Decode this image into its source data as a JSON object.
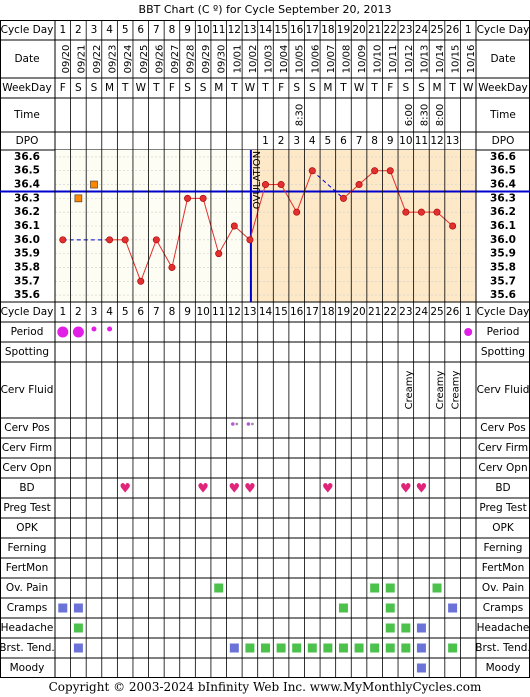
{
  "header": {
    "title": "BBT Chart (C º) for Cycle September 20, 2013"
  },
  "footer": {
    "copyright": "Copyright © 2003-2024 bInfinity Web Inc.    www.MyMonthlyCycles.com"
  },
  "labels": {
    "cycle_day": "Cycle Day",
    "date": "Date",
    "weekday": "WeekDay",
    "time": "Time",
    "dpo": "DPO",
    "ovulation": "OVULATION"
  },
  "colors": {
    "grid": "#000000",
    "temp_area_pre": "#fdfdf3",
    "temp_area_post": "#fde8c8",
    "line": "#e03030",
    "point_fill": "#e03030",
    "coverline": "#0000cc",
    "ovulation_line": "#0000cc",
    "period": "#e21fe6",
    "heart": "#e0247a",
    "symptom": "#4cc24c",
    "symptom_blue": "#6b73d8",
    "dot_gray": "#999999",
    "dot_purple": "#bb55dd",
    "marker_orange": "#ff8800"
  },
  "chart_data": {
    "type": "line",
    "title": "BBT Chart (C º) for Cycle September 20, 2013",
    "cycle_days": [
      "1",
      "2",
      "3",
      "4",
      "5",
      "6",
      "7",
      "8",
      "9",
      "10",
      "11",
      "12",
      "13",
      "14",
      "15",
      "16",
      "17",
      "18",
      "19",
      "20",
      "21",
      "22",
      "23",
      "24",
      "25",
      "26",
      "1"
    ],
    "dates": [
      "09/20",
      "09/21",
      "09/22",
      "09/23",
      "09/24",
      "09/25",
      "09/26",
      "09/27",
      "09/28",
      "09/29",
      "09/30",
      "10/01",
      "10/02",
      "10/03",
      "10/04",
      "10/05",
      "10/06",
      "10/07",
      "10/08",
      "10/09",
      "10/10",
      "10/11",
      "10/12",
      "10/13",
      "10/14",
      "10/15",
      "10/16"
    ],
    "weekdays": [
      "F",
      "S",
      "S",
      "M",
      "T",
      "W",
      "T",
      "F",
      "S",
      "S",
      "M",
      "T",
      "W",
      "T",
      "F",
      "S",
      "S",
      "M",
      "T",
      "W",
      "T",
      "F",
      "S",
      "S",
      "M",
      "T",
      "W"
    ],
    "times": [
      "",
      "",
      "",
      "",
      "",
      "",
      "",
      "",
      "",
      "",
      "",
      "",
      "",
      "",
      "",
      "8:30",
      "",
      "",
      "",
      "",
      "",
      "",
      "6:00",
      "8:30",
      "8:00",
      "",
      ""
    ],
    "dpo": [
      "",
      "",
      "",
      "",
      "",
      "",
      "",
      "",
      "",
      "",
      "",
      "",
      "",
      "1",
      "2",
      "3",
      "4",
      "5",
      "6",
      "7",
      "8",
      "9",
      "10",
      "11",
      "12",
      "13",
      ""
    ],
    "y_ticks": [
      "36.6",
      "36.5",
      "36.4",
      "36.3",
      "36.2",
      "36.1",
      "36.0",
      "35.9",
      "35.8",
      "35.7",
      "35.6"
    ],
    "ylim": [
      35.6,
      36.6
    ],
    "temps": [
      36.0,
      null,
      null,
      36.0,
      36.0,
      35.7,
      36.0,
      35.8,
      36.3,
      36.3,
      35.9,
      36.1,
      36.0,
      36.4,
      36.4,
      36.2,
      36.5,
      null,
      36.3,
      36.4,
      36.5,
      36.5,
      36.2,
      36.2,
      36.2,
      36.1,
      null
    ],
    "excluded_temps": [
      {
        "day_index": 1,
        "value": 36.3
      },
      {
        "day_index": 2,
        "value": 36.4
      }
    ],
    "coverline": 36.35,
    "ovulation_day_index": 12
  },
  "symptom_rows": [
    {
      "label": "Period",
      "cells": {
        "0": "period-big",
        "1": "period-big",
        "2": "period-small",
        "3": "period-small",
        "26": "period-med"
      }
    },
    {
      "label": "Spotting",
      "cells": {}
    },
    {
      "label": "Cerv Fluid",
      "cells": {
        "22": "Creamy",
        "24": "Creamy",
        "25": "Creamy"
      }
    },
    {
      "label": "Cerv Pos",
      "cells": {
        "11": "cervpos",
        "12": "cervpos"
      }
    },
    {
      "label": "Cerv Firm",
      "cells": {}
    },
    {
      "label": "Cerv Opn",
      "cells": {}
    },
    {
      "label": "BD",
      "cells": {
        "4": "heart",
        "9": "heart",
        "11": "heart",
        "12": "heart",
        "17": "heart",
        "22": "heart",
        "23": "heart"
      }
    },
    {
      "label": "Preg Test",
      "cells": {}
    },
    {
      "label": "OPK",
      "cells": {}
    },
    {
      "label": "Ferning",
      "cells": {}
    },
    {
      "label": "FertMon",
      "cells": {}
    },
    {
      "label": "Ov. Pain",
      "cells": {
        "10": "green",
        "20": "green",
        "21": "green",
        "24": "green"
      }
    },
    {
      "label": "Cramps",
      "cells": {
        "0": "blue",
        "1": "blue",
        "18": "green",
        "21": "green",
        "25": "blue"
      }
    },
    {
      "label": "Headache",
      "cells": {
        "1": "green",
        "21": "green",
        "22": "green",
        "23": "blue"
      }
    },
    {
      "label": "Brst. Tend.",
      "cells": {
        "1": "blue",
        "11": "blue",
        "12": "green",
        "13": "green",
        "14": "green",
        "15": "green",
        "16": "green",
        "17": "green",
        "18": "green",
        "19": "green",
        "20": "green",
        "21": "green",
        "22": "green",
        "23": "blue",
        "25": "green"
      }
    },
    {
      "label": "Moody",
      "cells": {
        "23": "blue"
      }
    }
  ]
}
